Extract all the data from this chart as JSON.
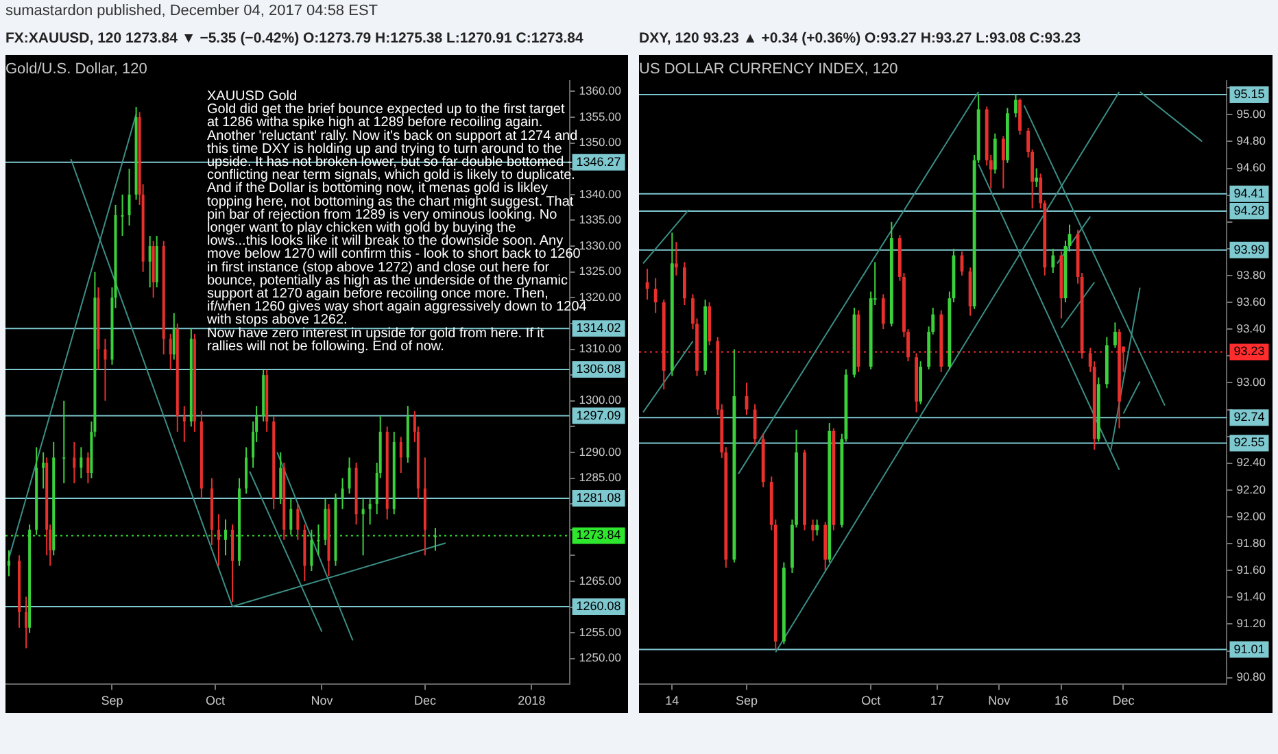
{
  "chart_data": [
    {
      "type": "candlestick",
      "title": "Gold/U.S. Dollar, 120",
      "subtitle": "FX:XAUUSD, 120 1273.84 ▼ −5.35 (−0.42%) O:1273.79 H:1275.38 L:1270.91 C:1273.84",
      "annotations": [
        "XAUUSD Gold\nGold did get the brief bounce expected up to the first target\nat 1286 witha spike high at 1289 before recoiling again.\nAnother 'reluctant' rally. Now it's back on support at 1274 and\nthis time DXY is holding up and trying to turn around to the\nupside. It has not broken lower, but so far double bottomed -\nconflicting near term signals, which gold is likely to duplicate.\nAnd if the Dollar is bottoming now, it menas gold is likley\ntopping here, not bottoming as the chart might suggest. That\npin bar of rejection from 1289 is very ominous looking. No\nlonger want to play chicken with gold by buying the\nlows...this looks like it will break to the downside soon. Any\nmove below 1270 will confirm this - look to short back to 1260\nin first instance (stop above 1272) and close out here for\nbounce, potentially as high as the underside of the dynamic\nsupport at 1270 again before recoiling once more. Then,\nif/when 1260 gives way short again aggressively down to 1204\nwith stops above 1262.\nNow have zero interest in upside for gold from here. If it\nrallies will not be following. End of now.",
        "sumastardon published, December 04, 2017 04:58 EST"
      ],
      "x": [
        "2017-08-02",
        "2017-08-05",
        "2017-08-07",
        "2017-08-08",
        "2017-08-10",
        "2017-08-12",
        "2017-08-13",
        "2017-08-14",
        "2017-08-15",
        "2017-08-18",
        "2017-08-21",
        "2017-08-23",
        "2017-08-25",
        "2017-08-26",
        "2017-08-27",
        "2017-08-28",
        "2017-08-30",
        "2017-09-01",
        "2017-09-02",
        "2017-09-04",
        "2017-09-06",
        "2017-09-08",
        "2017-09-09",
        "2017-09-10",
        "2017-09-12",
        "2017-09-13",
        "2017-09-14",
        "2017-09-16",
        "2017-09-18",
        "2017-09-19",
        "2017-09-20",
        "2017-09-22",
        "2017-09-24",
        "2017-09-25",
        "2017-09-27",
        "2017-09-30",
        "2017-10-02",
        "2017-10-04",
        "2017-10-06",
        "2017-10-08",
        "2017-10-10",
        "2017-10-12",
        "2017-10-13",
        "2017-10-15",
        "2017-10-16",
        "2017-10-18",
        "2017-10-20",
        "2017-10-21",
        "2017-10-23",
        "2017-10-25",
        "2017-10-27",
        "2017-10-29",
        "2017-10-31",
        "2017-11-02",
        "2017-11-03",
        "2017-11-05",
        "2017-11-07",
        "2017-11-09",
        "2017-11-11",
        "2017-11-13",
        "2017-11-15",
        "2017-11-17",
        "2017-11-18",
        "2017-11-20",
        "2017-11-22",
        "2017-11-24",
        "2017-11-26",
        "2017-11-28",
        "2017-11-29",
        "2017-12-01",
        "2017-12-04"
      ],
      "ohlc": [
        [
          1268,
          1271,
          1266,
          1269
        ],
        [
          1269,
          1270,
          1256,
          1259
        ],
        [
          1259,
          1262,
          1252,
          1256
        ],
        [
          1256,
          1276,
          1255,
          1275
        ],
        [
          1275,
          1291,
          1274,
          1287
        ],
        [
          1287,
          1290,
          1283,
          1288
        ],
        [
          1288,
          1289,
          1270,
          1275
        ],
        [
          1275,
          1276,
          1268,
          1271
        ],
        [
          1271,
          1292,
          1270,
          1289
        ],
        [
          1289,
          1300,
          1284,
          1289
        ],
        [
          1289,
          1292,
          1284,
          1287
        ],
        [
          1287,
          1291,
          1285,
          1289
        ],
        [
          1289,
          1290,
          1284,
          1286
        ],
        [
          1286,
          1296,
          1285,
          1294
        ],
        [
          1294,
          1325,
          1293,
          1320
        ],
        [
          1320,
          1322,
          1306,
          1310
        ],
        [
          1310,
          1312,
          1300,
          1308
        ],
        [
          1308,
          1322,
          1307,
          1320
        ],
        [
          1320,
          1338,
          1318,
          1336
        ],
        [
          1336,
          1340,
          1332,
          1336
        ],
        [
          1336,
          1345,
          1334,
          1340
        ],
        [
          1340,
          1357,
          1339,
          1355
        ],
        [
          1355,
          1356,
          1338,
          1340
        ],
        [
          1340,
          1342,
          1325,
          1327
        ],
        [
          1327,
          1332,
          1322,
          1330
        ],
        [
          1330,
          1331,
          1320,
          1323
        ],
        [
          1323,
          1332,
          1322,
          1330
        ],
        [
          1330,
          1331,
          1309,
          1312
        ],
        [
          1312,
          1313,
          1306,
          1309
        ],
        [
          1309,
          1317,
          1308,
          1314
        ],
        [
          1314,
          1315,
          1294,
          1297
        ],
        [
          1297,
          1299,
          1292,
          1296
        ],
        [
          1296,
          1314,
          1295,
          1312
        ],
        [
          1312,
          1313,
          1294,
          1296
        ],
        [
          1296,
          1298,
          1281,
          1283
        ],
        [
          1283,
          1285,
          1272,
          1275
        ],
        [
          1275,
          1278,
          1268,
          1273
        ],
        [
          1273,
          1277,
          1270,
          1275
        ],
        [
          1275,
          1276,
          1261,
          1269
        ],
        [
          1269,
          1285,
          1268,
          1283
        ],
        [
          1283,
          1291,
          1282,
          1289
        ],
        [
          1289,
          1296,
          1287,
          1294
        ],
        [
          1294,
          1299,
          1292,
          1297
        ],
        [
          1297,
          1306,
          1296,
          1305
        ],
        [
          1305,
          1306,
          1294,
          1296
        ],
        [
          1296,
          1297,
          1279,
          1281
        ],
        [
          1281,
          1290,
          1280,
          1287
        ],
        [
          1287,
          1288,
          1273,
          1275
        ],
        [
          1275,
          1281,
          1274,
          1279
        ],
        [
          1279,
          1280,
          1273,
          1275
        ],
        [
          1275,
          1276,
          1265,
          1268
        ],
        [
          1268,
          1275,
          1267,
          1273
        ],
        [
          1273,
          1276,
          1270,
          1273
        ],
        [
          1273,
          1281,
          1272,
          1279
        ],
        [
          1279,
          1280,
          1266,
          1269
        ],
        [
          1269,
          1282,
          1268,
          1281
        ],
        [
          1281,
          1285,
          1279,
          1283
        ],
        [
          1283,
          1289,
          1282,
          1287
        ],
        [
          1287,
          1288,
          1276,
          1278
        ],
        [
          1278,
          1281,
          1270,
          1279
        ],
        [
          1279,
          1281,
          1276,
          1280
        ],
        [
          1280,
          1288,
          1278,
          1286
        ],
        [
          1286,
          1297,
          1285,
          1294
        ],
        [
          1294,
          1295,
          1277,
          1279
        ],
        [
          1279,
          1294,
          1278,
          1292
        ],
        [
          1292,
          1293,
          1286,
          1289
        ],
        [
          1289,
          1299,
          1288,
          1297
        ],
        [
          1297,
          1298,
          1292,
          1294
        ],
        [
          1294,
          1295,
          1281,
          1283
        ],
        [
          1283,
          1289,
          1270,
          1275
        ],
        [
          1273.79,
          1275.38,
          1270.91,
          1273.84
        ]
      ],
      "series": [
        {
          "type": "line",
          "color": "#3b8f86",
          "x": [
            "2017-08-02",
            "2017-09-08"
          ],
          "values": [
            1269.5,
            1355.6
          ]
        },
        {
          "type": "line",
          "color": "#3b8f86",
          "x": [
            "2017-08-20",
            "2017-10-06"
          ],
          "values": [
            1346.9,
            1260.1
          ]
        },
        {
          "type": "line",
          "color": "#3b8f86",
          "x": [
            "2017-10-06",
            "2017-12-07"
          ],
          "values": [
            1260.1,
            1272.4
          ]
        },
        {
          "type": "line",
          "color": "#3b8f86",
          "x": [
            "2017-10-11",
            "2017-11-01"
          ],
          "values": [
            1286.3,
            1255.2
          ]
        },
        {
          "type": "line",
          "color": "#3b8f86",
          "x": [
            "2017-10-19",
            "2017-11-10"
          ],
          "values": [
            1290,
            1253.5
          ]
        }
      ],
      "ref_lines": [
        {
          "axis": "y",
          "value": 1346.27,
          "label": "1346.27",
          "color": "#7ec8d0"
        },
        {
          "axis": "y",
          "value": 1314.02,
          "label": "1314.02",
          "color": "#7ec8d0"
        },
        {
          "axis": "y",
          "value": 1306.08,
          "label": "1306.08",
          "color": "#7ec8d0"
        },
        {
          "axis": "y",
          "value": 1297.09,
          "label": "1297.09",
          "color": "#7ec8d0"
        },
        {
          "axis": "y",
          "value": 1281.08,
          "label": "1281.08",
          "color": "#7ec8d0"
        },
        {
          "axis": "y",
          "value": 1260.08,
          "label": "1260.08",
          "color": "#7ec8d0"
        },
        {
          "axis": "y",
          "value": 1273.84,
          "label": "1273.84",
          "color": "#2ee62e",
          "line_style": "dotted"
        }
      ],
      "xlim": [
        "2017-08-01",
        "2018-01-12"
      ],
      "xticks": [
        {
          "value": "2017-09-01",
          "label": "Sep"
        },
        {
          "value": "2017-10-01",
          "label": "Oct"
        },
        {
          "value": "2017-11-01",
          "label": "Nov"
        },
        {
          "value": "2017-12-01",
          "label": "Dec"
        },
        {
          "value": "2018-01-01",
          "label": "2018"
        }
      ],
      "ylim": [
        1245,
        1362
      ],
      "yticks": [
        {
          "value": 1250,
          "label": "1250.00"
        },
        {
          "value": 1255,
          "label": "1255.00"
        },
        {
          "value": 1260,
          "label": null
        },
        {
          "value": 1265,
          "label": "1265.00"
        },
        {
          "value": 1270,
          "label": null
        },
        {
          "value": 1275,
          "label": null
        },
        {
          "value": 1280,
          "label": null
        },
        {
          "value": 1285,
          "label": "1285.00"
        },
        {
          "value": 1290,
          "label": "1290.00"
        },
        {
          "value": 1295,
          "label": null
        },
        {
          "value": 1300,
          "label": "1300.00"
        },
        {
          "value": 1305,
          "label": null
        },
        {
          "value": 1310,
          "label": "1310.00"
        },
        {
          "value": 1315,
          "label": null
        },
        {
          "value": 1320,
          "label": "1320.00"
        },
        {
          "value": 1325,
          "label": "1325.00"
        },
        {
          "value": 1330,
          "label": "1330.00"
        },
        {
          "value": 1335,
          "label": "1335.00"
        },
        {
          "value": 1340,
          "label": "1340.00"
        },
        {
          "value": 1345,
          "label": null
        },
        {
          "value": 1350,
          "label": "1350.00"
        },
        {
          "value": 1355,
          "label": "1355.00"
        },
        {
          "value": 1360,
          "label": "1360.00"
        }
      ]
    },
    {
      "type": "candlestick",
      "title": "US DOLLAR CURRENCY INDEX, 120",
      "subtitle": "DXY, 120 93.23 ▲ +0.34 (+0.36%) O:93.27 H:93.27 L:93.08 C:93.23",
      "x": [
        "2017-08-08",
        "2017-08-10",
        "2017-08-12",
        "2017-08-14",
        "2017-08-15",
        "2017-08-17",
        "2017-08-19",
        "2017-08-20",
        "2017-08-22",
        "2017-08-23",
        "2017-08-25",
        "2017-08-26",
        "2017-08-27",
        "2017-08-29",
        "2017-09-01",
        "2017-09-03",
        "2017-09-05",
        "2017-09-07",
        "2017-09-08",
        "2017-09-10",
        "2017-09-12",
        "2017-09-13",
        "2017-09-15",
        "2017-09-17",
        "2017-09-18",
        "2017-09-20",
        "2017-09-21",
        "2017-09-22",
        "2017-09-24",
        "2017-09-25",
        "2017-09-27",
        "2017-09-28",
        "2017-10-01",
        "2017-10-02",
        "2017-10-04",
        "2017-10-06",
        "2017-10-08",
        "2017-10-09",
        "2017-10-10",
        "2017-10-12",
        "2017-10-13",
        "2017-10-15",
        "2017-10-16",
        "2017-10-18",
        "2017-10-20",
        "2017-10-21",
        "2017-10-23",
        "2017-10-25",
        "2017-10-26",
        "2017-10-27",
        "2017-10-29",
        "2017-10-30",
        "2017-10-31",
        "2017-11-02",
        "2017-11-03",
        "2017-11-05",
        "2017-11-06",
        "2017-11-08",
        "2017-11-09",
        "2017-11-10",
        "2017-11-11",
        "2017-11-12",
        "2017-11-14",
        "2017-11-16",
        "2017-11-17",
        "2017-11-18",
        "2017-11-20",
        "2017-11-21",
        "2017-11-23",
        "2017-11-24",
        "2017-11-25",
        "2017-11-27",
        "2017-11-29",
        "2017-11-30",
        "2017-12-01"
      ],
      "ohlc": [
        [
          93.75,
          93.85,
          93.62,
          93.7
        ],
        [
          93.7,
          93.78,
          93.52,
          93.6
        ],
        [
          93.6,
          93.62,
          92.95,
          93.09
        ],
        [
          93.09,
          94.12,
          93.05,
          93.89
        ],
        [
          93.89,
          94.05,
          93.8,
          93.86
        ],
        [
          93.86,
          93.9,
          93.58,
          93.63
        ],
        [
          93.63,
          93.66,
          93.4,
          93.44
        ],
        [
          93.44,
          93.48,
          93.05,
          93.09
        ],
        [
          93.09,
          93.62,
          93.06,
          93.57
        ],
        [
          93.57,
          93.6,
          93.28,
          93.31
        ],
        [
          93.31,
          93.34,
          92.76,
          92.8
        ],
        [
          92.8,
          92.84,
          92.44,
          92.48
        ],
        [
          92.48,
          92.52,
          91.62,
          91.68
        ],
        [
          91.68,
          93.25,
          91.66,
          92.9
        ],
        [
          92.9,
          93.0,
          92.76,
          92.8
        ],
        [
          92.8,
          92.84,
          92.54,
          92.58
        ],
        [
          92.58,
          92.62,
          92.22,
          92.26
        ],
        [
          92.26,
          92.3,
          91.9,
          91.94
        ],
        [
          91.94,
          91.98,
          91.01,
          91.07
        ],
        [
          91.07,
          91.66,
          91.05,
          91.62
        ],
        [
          91.62,
          91.98,
          91.58,
          91.94
        ],
        [
          91.94,
          92.65,
          91.92,
          92.48
        ],
        [
          92.48,
          92.5,
          91.9,
          91.94
        ],
        [
          91.94,
          91.98,
          91.82,
          91.9
        ],
        [
          91.9,
          91.98,
          91.86,
          91.94
        ],
        [
          91.94,
          91.96,
          91.6,
          91.68
        ],
        [
          91.68,
          92.7,
          91.66,
          92.64
        ],
        [
          92.64,
          92.66,
          91.9,
          91.94
        ],
        [
          91.94,
          92.62,
          91.92,
          92.58
        ],
        [
          92.58,
          93.1,
          92.56,
          93.06
        ],
        [
          93.06,
          93.56,
          93.04,
          93.51
        ],
        [
          93.51,
          93.54,
          93.08,
          93.12
        ],
        [
          93.12,
          93.68,
          93.1,
          93.63
        ],
        [
          93.63,
          93.9,
          93.58,
          93.63
        ],
        [
          93.63,
          93.66,
          93.4,
          93.44
        ],
        [
          93.44,
          94.2,
          93.42,
          94.08
        ],
        [
          94.08,
          94.1,
          93.76,
          93.79
        ],
        [
          93.79,
          93.82,
          93.34,
          93.38
        ],
        [
          93.38,
          93.4,
          93.16,
          93.19
        ],
        [
          93.19,
          93.22,
          92.78,
          92.86
        ],
        [
          92.86,
          93.16,
          92.84,
          93.12
        ],
        [
          93.12,
          93.42,
          93.1,
          93.38
        ],
        [
          93.38,
          93.56,
          93.36,
          93.51
        ],
        [
          93.51,
          93.54,
          93.08,
          93.12
        ],
        [
          93.12,
          93.68,
          93.1,
          93.63
        ],
        [
          93.63,
          94.0,
          93.6,
          93.95
        ],
        [
          93.95,
          93.98,
          93.8,
          93.83
        ],
        [
          93.83,
          93.86,
          93.5,
          93.57
        ],
        [
          93.57,
          94.7,
          93.55,
          94.66
        ],
        [
          94.66,
          95.15,
          94.64,
          95.04
        ],
        [
          95.04,
          95.06,
          94.62,
          94.66
        ],
        [
          94.66,
          94.7,
          94.45,
          94.59
        ],
        [
          94.59,
          94.86,
          94.56,
          94.82
        ],
        [
          94.82,
          94.84,
          94.45,
          94.66
        ],
        [
          94.66,
          95.05,
          94.64,
          95.01
        ],
        [
          95.01,
          95.15,
          94.98,
          95.11
        ],
        [
          95.11,
          95.12,
          94.85,
          94.88
        ],
        [
          94.88,
          94.9,
          94.68,
          94.72
        ],
        [
          94.72,
          94.74,
          94.3,
          94.5
        ],
        [
          94.5,
          94.6,
          94.46,
          94.53
        ],
        [
          94.53,
          94.56,
          94.3,
          94.34
        ],
        [
          94.34,
          94.36,
          93.8,
          93.86
        ],
        [
          93.86,
          94.0,
          93.82,
          93.95
        ],
        [
          93.95,
          93.98,
          93.48,
          93.63
        ],
        [
          93.63,
          94.06,
          93.6,
          94.02
        ],
        [
          94.02,
          94.18,
          93.98,
          94.11
        ],
        [
          94.11,
          94.14,
          93.74,
          93.79
        ],
        [
          93.79,
          93.82,
          93.18,
          93.22
        ],
        [
          93.22,
          93.26,
          93.08,
          93.12
        ],
        [
          93.12,
          93.16,
          92.5,
          92.58
        ],
        [
          92.58,
          93.04,
          92.56,
          92.99
        ],
        [
          92.99,
          93.34,
          92.96,
          93.28
        ],
        [
          93.28,
          93.45,
          93.26,
          93.38
        ],
        [
          93.38,
          93.4,
          92.66,
          92.86
        ],
        [
          93.27,
          93.27,
          93.08,
          93.23
        ]
      ],
      "series": [
        {
          "type": "line",
          "color": "#3b8f86",
          "x": [
            "2017-08-30",
            "2017-10-27"
          ],
          "values": [
            92.32,
            95.17
          ]
        },
        {
          "type": "line",
          "color": "#3b8f86",
          "x": [
            "2017-09-08",
            "2017-11-30"
          ],
          "values": [
            90.99,
            95.17
          ]
        },
        {
          "type": "line",
          "color": "#3b8f86",
          "x": [
            "2017-08-07",
            "2017-08-18"
          ],
          "values": [
            93.89,
            94.29
          ]
        },
        {
          "type": "line",
          "color": "#3b8f86",
          "x": [
            "2017-08-07",
            "2017-08-19"
          ],
          "values": [
            92.78,
            93.31
          ]
        },
        {
          "type": "line",
          "color": "#3b8f86",
          "x": [
            "2017-10-27",
            "2017-11-30"
          ],
          "values": [
            94.63,
            92.35
          ]
        },
        {
          "type": "line",
          "color": "#3b8f86",
          "x": [
            "2017-11-07",
            "2017-12-11"
          ],
          "values": [
            95.07,
            92.83
          ]
        },
        {
          "type": "line",
          "color": "#3b8f86",
          "x": [
            "2017-12-05",
            "2017-12-20"
          ],
          "values": [
            95.17,
            94.8
          ]
        },
        {
          "type": "line",
          "color": "#3b8f86",
          "x": [
            "2017-11-16",
            "2017-11-24"
          ],
          "values": [
            93.41,
            93.75
          ]
        },
        {
          "type": "line",
          "color": "#3b8f86",
          "x": [
            "2017-11-15",
            "2017-11-23"
          ],
          "values": [
            93.89,
            94.24
          ]
        },
        {
          "type": "line",
          "color": "#3b8f86",
          "x": [
            "2017-11-28",
            "2017-12-05"
          ],
          "values": [
            92.5,
            93.71
          ]
        },
        {
          "type": "line",
          "color": "#3b8f86",
          "x": [
            "2017-12-01",
            "2017-12-05"
          ],
          "values": [
            92.77,
            93.01
          ]
        }
      ],
      "ref_lines": [
        {
          "axis": "y",
          "value": 95.15,
          "label": "95.15",
          "color": "#7ec8d0"
        },
        {
          "axis": "y",
          "value": 94.41,
          "label": "94.41",
          "color": "#7ec8d0"
        },
        {
          "axis": "y",
          "value": 94.28,
          "label": "94.28",
          "color": "#7ec8d0"
        },
        {
          "axis": "y",
          "value": 93.99,
          "label": "93.99",
          "color": "#7ec8d0"
        },
        {
          "axis": "y",
          "value": 92.74,
          "label": "92.74",
          "color": "#7ec8d0"
        },
        {
          "axis": "y",
          "value": 92.55,
          "label": "92.55",
          "color": "#7ec8d0"
        },
        {
          "axis": "y",
          "value": 91.01,
          "label": "91.01",
          "color": "#7ec8d0"
        },
        {
          "axis": "y",
          "value": 93.23,
          "label": "93.23",
          "color": "#ff2d2d",
          "line_style": "dotted"
        }
      ],
      "xlim": [
        "2017-08-06",
        "2017-12-26"
      ],
      "xticks": [
        {
          "value": "2017-08-14",
          "label": "14"
        },
        {
          "value": "2017-09-01",
          "label": "Sep"
        },
        {
          "value": "2017-10-01",
          "label": "Oct"
        },
        {
          "value": "2017-10-17",
          "label": "17"
        },
        {
          "value": "2017-11-01",
          "label": "Nov"
        },
        {
          "value": "2017-11-16",
          "label": "16"
        },
        {
          "value": "2017-12-01",
          "label": "Dec"
        }
      ],
      "ylim": [
        90.75,
        95.25
      ],
      "yticks": [
        {
          "value": 90.8,
          "label": "90.80"
        },
        {
          "value": 91,
          "label": null
        },
        {
          "value": 91.2,
          "label": "91.20"
        },
        {
          "value": 91.4,
          "label": "91.40"
        },
        {
          "value": 91.6,
          "label": "91.60"
        },
        {
          "value": 91.8,
          "label": "91.80"
        },
        {
          "value": 92,
          "label": "92.00"
        },
        {
          "value": 92.2,
          "label": "92.20"
        },
        {
          "value": 92.4,
          "label": "92.40"
        },
        {
          "value": 92.6,
          "label": null
        },
        {
          "value": 92.8,
          "label": null
        },
        {
          "value": 93,
          "label": "93.00"
        },
        {
          "value": 93.2,
          "label": null
        },
        {
          "value": 93.4,
          "label": "93.40"
        },
        {
          "value": 93.6,
          "label": "93.60"
        },
        {
          "value": 93.8,
          "label": "93.80"
        },
        {
          "value": 94,
          "label": null
        },
        {
          "value": 94.2,
          "label": null
        },
        {
          "value": 94.4,
          "label": null
        },
        {
          "value": 94.6,
          "label": "94.60"
        },
        {
          "value": 94.8,
          "label": "94.80"
        },
        {
          "value": 95,
          "label": "95.00"
        },
        {
          "value": 95.2,
          "label": null
        }
      ]
    }
  ]
}
